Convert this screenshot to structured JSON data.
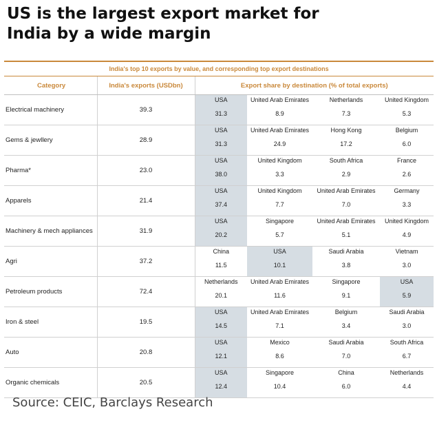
{
  "headline": {
    "line1": "US is the largest export market for",
    "line2": "India by a wide margin"
  },
  "table": {
    "caption": "India's top 10 exports by value, and corresponding top export destinations",
    "headers": {
      "category": "Category",
      "exports": "India's exports (USDbn)",
      "share": "Export share by destination (% of total exports)"
    },
    "highlight_color": "#d6dde3",
    "accent_color": "#c9883a",
    "rows": [
      {
        "category": "Electrical machinery",
        "exports": "39.3",
        "destinations": [
          {
            "name": "USA",
            "share": "31.3",
            "hl": true
          },
          {
            "name": "United Arab Emirates",
            "share": "8.9"
          },
          {
            "name": "Netherlands",
            "share": "7.3"
          },
          {
            "name": "United Kingdom",
            "share": "5.3"
          }
        ]
      },
      {
        "category": "Gems & jewllery",
        "exports": "28.9",
        "destinations": [
          {
            "name": "USA",
            "share": "31.3",
            "hl": true
          },
          {
            "name": "United Arab Emirates",
            "share": "24.9"
          },
          {
            "name": "Hong Kong",
            "share": "17.2"
          },
          {
            "name": "Belgium",
            "share": "6.0"
          }
        ]
      },
      {
        "category": "Pharma*",
        "exports": "23.0",
        "destinations": [
          {
            "name": "USA",
            "share": "38.0",
            "hl": true
          },
          {
            "name": "United Kingdom",
            "share": "3.3"
          },
          {
            "name": "South Africa",
            "share": "2.9"
          },
          {
            "name": "France",
            "share": "2.6"
          }
        ]
      },
      {
        "category": "Apparels",
        "exports": "21.4",
        "destinations": [
          {
            "name": "USA",
            "share": "37.4",
            "hl": true
          },
          {
            "name": "United Kingdom",
            "share": "7.7"
          },
          {
            "name": "United Arab Emirates",
            "share": "7.0"
          },
          {
            "name": "Germany",
            "share": "3.3"
          }
        ]
      },
      {
        "category": "Machinery & mech appliances",
        "exports": "31.9",
        "destinations": [
          {
            "name": "USA",
            "share": "20.2",
            "hl": true
          },
          {
            "name": "Singapore",
            "share": "5.7"
          },
          {
            "name": "United Arab Emirates",
            "share": "5.1"
          },
          {
            "name": "United Kingdom",
            "share": "4.9"
          }
        ]
      },
      {
        "category": "Agri",
        "exports": "37.2",
        "destinations": [
          {
            "name": "China",
            "share": "11.5"
          },
          {
            "name": "USA",
            "share": "10.1",
            "hl": true
          },
          {
            "name": "Saudi Arabia",
            "share": "3.8"
          },
          {
            "name": "Vietnam",
            "share": "3.0"
          }
        ]
      },
      {
        "category": "Petroleum products",
        "exports": "72.4",
        "destinations": [
          {
            "name": "Netherlands",
            "share": "20.1"
          },
          {
            "name": "United Arab Emirates",
            "share": "11.6"
          },
          {
            "name": "Singapore",
            "share": "9.1"
          },
          {
            "name": "USA",
            "share": "5.9",
            "hl": true
          }
        ]
      },
      {
        "category": "Iron & steel",
        "exports": "19.5",
        "destinations": [
          {
            "name": "USA",
            "share": "14.5",
            "hl": true
          },
          {
            "name": "United Arab Emirates",
            "share": "7.1"
          },
          {
            "name": "Belgium",
            "share": "3.4"
          },
          {
            "name": "Saudi Arabia",
            "share": "3.0"
          }
        ]
      },
      {
        "category": "Auto",
        "exports": "20.8",
        "destinations": [
          {
            "name": "USA",
            "share": "12.1",
            "hl": true
          },
          {
            "name": "Mexico",
            "share": "8.6"
          },
          {
            "name": "Saudi Arabia",
            "share": "7.0"
          },
          {
            "name": "South Africa",
            "share": "6.7"
          }
        ]
      },
      {
        "category": "Organic chemicals",
        "exports": "20.5",
        "destinations": [
          {
            "name": "USA",
            "share": "12.4",
            "hl": true
          },
          {
            "name": "Singapore",
            "share": "10.4"
          },
          {
            "name": "China",
            "share": "6.0"
          },
          {
            "name": "Netherlands",
            "share": "4.4"
          }
        ]
      }
    ]
  },
  "source": "Source: CEIC, Barclays Research"
}
